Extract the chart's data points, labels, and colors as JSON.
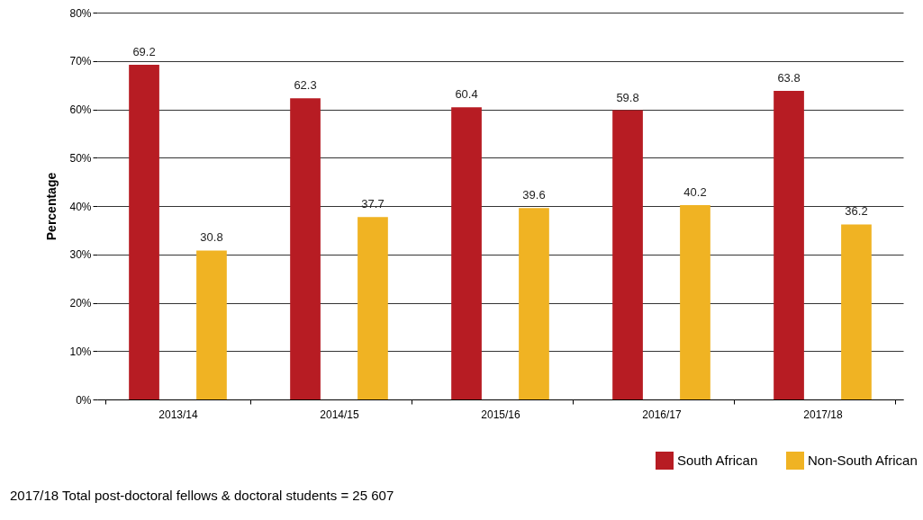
{
  "chart_data": {
    "type": "bar",
    "ylabel": "Percentage",
    "categories": [
      "2013/14",
      "2014/15",
      "2015/16",
      "2016/17",
      "2017/18"
    ],
    "series": [
      {
        "name": "South African",
        "color": "#b71c23",
        "values": [
          69.2,
          62.3,
          60.4,
          59.8,
          63.8
        ]
      },
      {
        "name": "Non-South African",
        "color": "#f0b323",
        "values": [
          30.8,
          37.7,
          39.6,
          40.2,
          36.2
        ]
      }
    ],
    "ylim": [
      0,
      80
    ],
    "yticks": [
      {
        "value": 0,
        "label": "0%"
      },
      {
        "value": 10,
        "label": "10%"
      },
      {
        "value": 20,
        "label": "20%"
      },
      {
        "value": 30,
        "label": "30%"
      },
      {
        "value": 40,
        "label": "40%"
      },
      {
        "value": 50,
        "label": "50%"
      },
      {
        "value": 60,
        "label": "60%"
      },
      {
        "value": 70,
        "label": "70%"
      },
      {
        "value": 80,
        "label": "80%"
      }
    ],
    "grid": "y",
    "legend": "bottom right",
    "data_labels": true,
    "annotations": [
      "2017/18 Total post-doctoral fellows & doctoral students = 25 607"
    ]
  }
}
